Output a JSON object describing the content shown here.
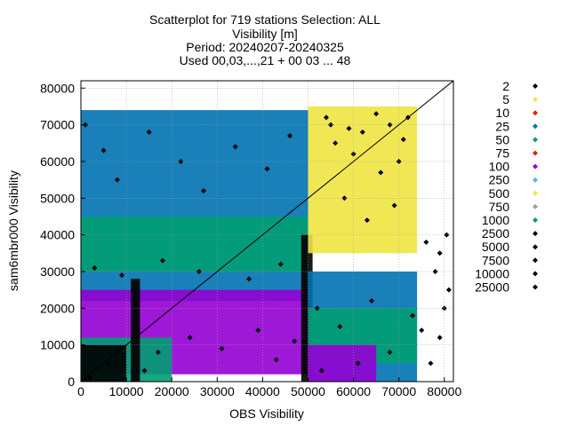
{
  "chart_data": {
    "type": "scatter",
    "title_lines": [
      "Scatterplot for  719 stations Selection: ALL",
      "Visibility [m]",
      "Period: 20240207-20240325",
      "Used 00,03,...,21 + 00 03 ... 48"
    ],
    "xlabel": "OBS Visibility",
    "ylabel": "sam6mbr000 Visibility",
    "xlim": [
      0,
      82000
    ],
    "ylim": [
      0,
      82000
    ],
    "xticks": [
      0,
      10000,
      20000,
      30000,
      40000,
      50000,
      60000,
      70000,
      80000
    ],
    "yticks": [
      0,
      10000,
      20000,
      30000,
      40000,
      50000,
      60000,
      70000,
      80000
    ],
    "grid": true,
    "diagonal": true,
    "legend_position": "right",
    "colors": {
      "2": "#000000",
      "5": "#f0e442",
      "10": "#e51e10",
      "25": "#0072b2",
      "50": "#009e73",
      "75": "#e51e10",
      "100": "#9400d3",
      "250": "#56b4e9",
      "500": "#f0e442",
      "750": "#a0a0a0",
      "1000": "#009e73",
      "2500": "#000000",
      "5000": "#000000",
      "7500": "#000000",
      "10000": "#000000",
      "25000": "#000000"
    },
    "legend": [
      "2",
      "5",
      "10",
      "25",
      "50",
      "75",
      "100",
      "250",
      "500",
      "750",
      "1000",
      "2500",
      "5000",
      "7500",
      "10000",
      "25000"
    ],
    "density_regions": [
      {
        "count_class": "25",
        "x": [
          0,
          50000
        ],
        "y": [
          22000,
          74000
        ]
      },
      {
        "count_class": "50",
        "x": [
          0,
          50000
        ],
        "y": [
          30000,
          45000
        ]
      },
      {
        "count_class": "100",
        "x": [
          0,
          50000
        ],
        "y": [
          2000,
          25000
        ]
      },
      {
        "count_class": "1000",
        "x": [
          0,
          20000
        ],
        "y": [
          0,
          12000
        ]
      },
      {
        "count_class": "2",
        "x": [
          0,
          10000
        ],
        "y": [
          0,
          10000
        ]
      },
      {
        "count_class": "2",
        "x": [
          48500,
          51000
        ],
        "y": [
          0,
          40000
        ]
      },
      {
        "count_class": "2",
        "x": [
          11000,
          13000
        ],
        "y": [
          0,
          28000
        ]
      },
      {
        "count_class": "500",
        "x": [
          50000,
          74000
        ],
        "y": [
          35000,
          75000
        ]
      },
      {
        "count_class": "25",
        "x": [
          50000,
          74000
        ],
        "y": [
          0,
          30000
        ]
      },
      {
        "count_class": "50",
        "x": [
          50000,
          74000
        ],
        "y": [
          5000,
          20000
        ]
      },
      {
        "count_class": "100",
        "x": [
          50000,
          65000
        ],
        "y": [
          0,
          10000
        ]
      }
    ],
    "sample_points": [
      [
        1000,
        70000
      ],
      [
        5000,
        63000
      ],
      [
        8000,
        55000
      ],
      [
        15000,
        68000
      ],
      [
        22000,
        60000
      ],
      [
        27000,
        52000
      ],
      [
        34000,
        64000
      ],
      [
        41000,
        58000
      ],
      [
        46000,
        67000
      ],
      [
        3000,
        31000
      ],
      [
        9000,
        29000
      ],
      [
        18000,
        33000
      ],
      [
        26000,
        30000
      ],
      [
        37000,
        28000
      ],
      [
        44000,
        32000
      ],
      [
        55000,
        70000
      ],
      [
        60000,
        62000
      ],
      [
        66000,
        57000
      ],
      [
        71000,
        66000
      ],
      [
        58000,
        50000
      ],
      [
        63000,
        44000
      ],
      [
        69000,
        48000
      ],
      [
        72000,
        72000
      ],
      [
        68000,
        70000
      ],
      [
        65000,
        73000
      ],
      [
        62000,
        68000
      ],
      [
        59000,
        69000
      ],
      [
        56000,
        65000
      ],
      [
        54000,
        72000
      ],
      [
        70000,
        60000
      ],
      [
        52000,
        20000
      ],
      [
        57000,
        15000
      ],
      [
        64000,
        22000
      ],
      [
        68000,
        8000
      ],
      [
        73000,
        18000
      ],
      [
        76000,
        38000
      ],
      [
        78000,
        30000
      ],
      [
        79000,
        12000
      ],
      [
        80000,
        20000
      ],
      [
        77000,
        5000
      ],
      [
        81000,
        25000
      ],
      [
        75000,
        14000
      ],
      [
        79000,
        35000
      ],
      [
        80500,
        40000
      ],
      [
        2000,
        1000
      ],
      [
        6000,
        5000
      ],
      [
        14000,
        3000
      ],
      [
        17000,
        8000
      ],
      [
        24000,
        12000
      ],
      [
        31000,
        9000
      ],
      [
        39000,
        14000
      ],
      [
        43000,
        6000
      ],
      [
        47000,
        11000
      ],
      [
        53000,
        3000
      ],
      [
        61000,
        5000
      ]
    ]
  }
}
